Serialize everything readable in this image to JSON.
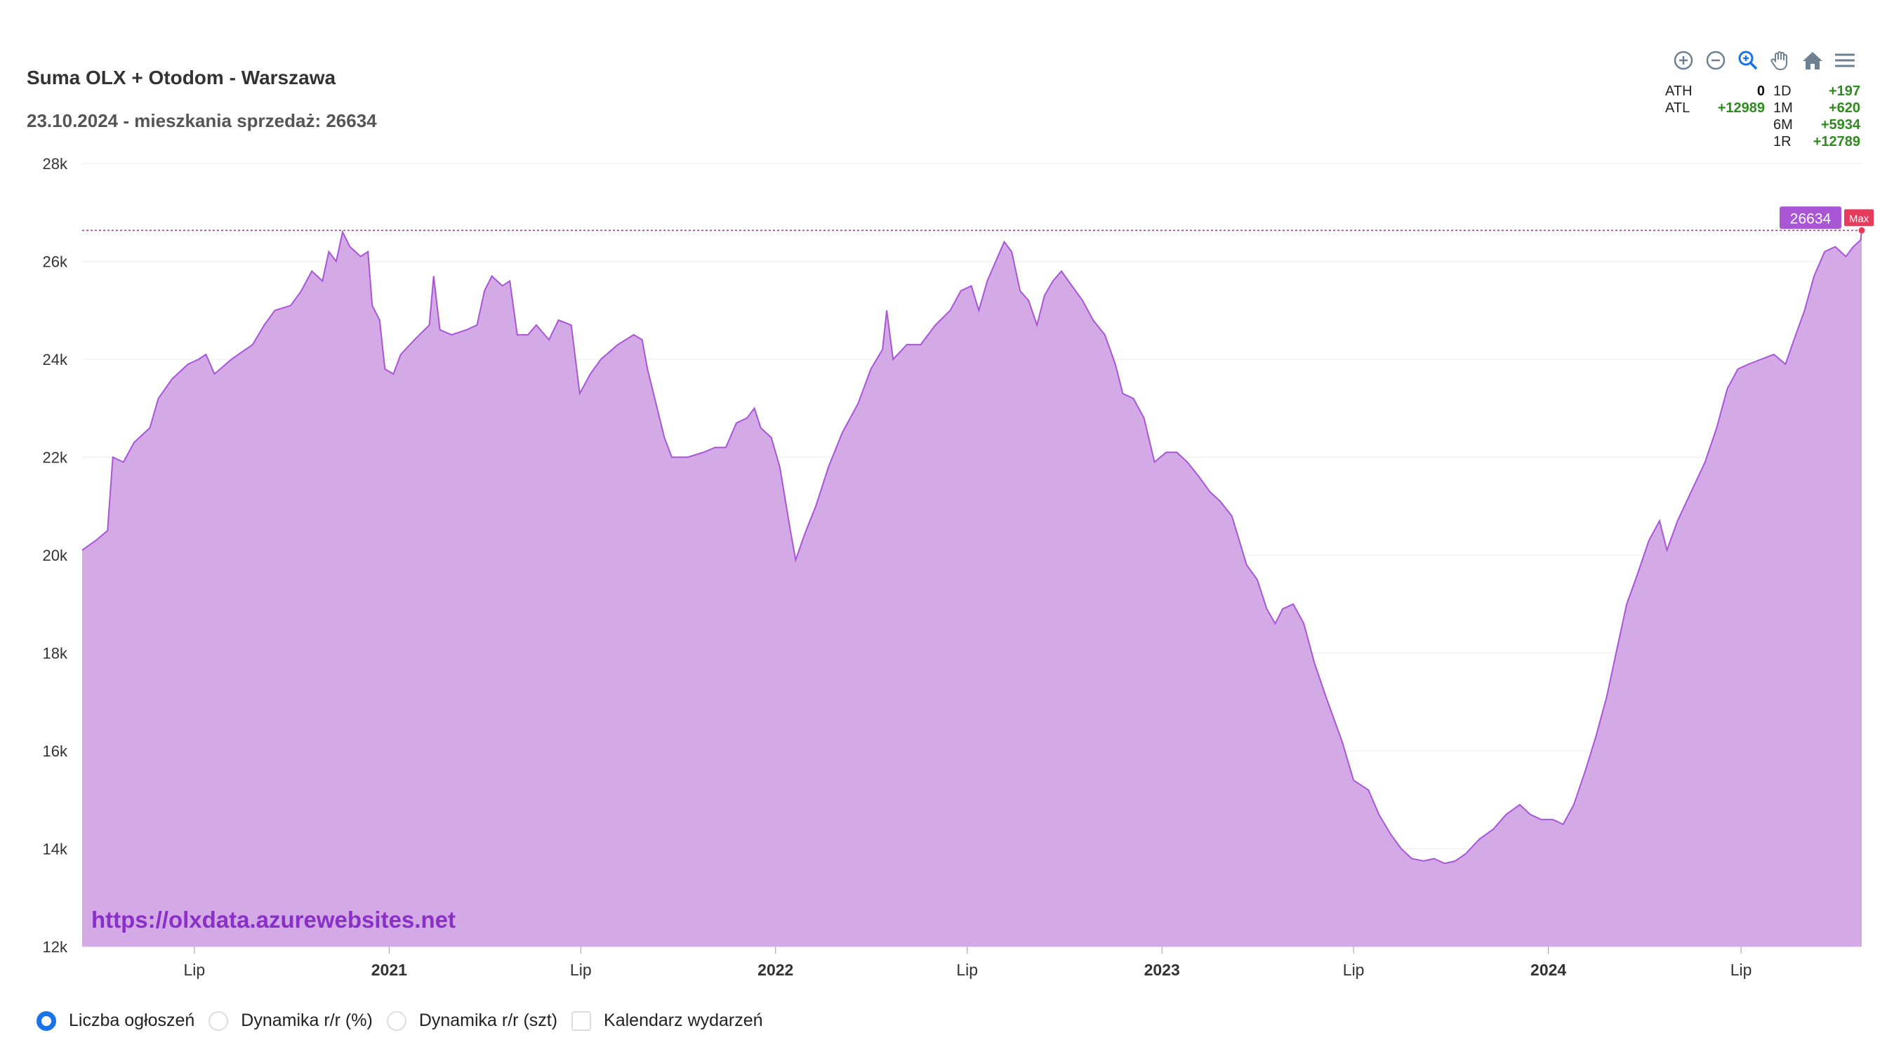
{
  "header": {
    "title": "Suma OLX + Otodom - Warszawa",
    "subtitle": "23.10.2024 - mieszkania sprzedaż: 26634"
  },
  "toolbar": {
    "icons": [
      "zoom-in-icon",
      "zoom-out-icon",
      "zoom-select-icon",
      "pan-hand-icon",
      "home-reset-icon",
      "menu-icon"
    ]
  },
  "stats": {
    "ath_label": "ATH",
    "ath_value": "0",
    "atl_label": "ATL",
    "atl_value": "+12989",
    "d1_label": "1D",
    "d1_value": "+197",
    "m1_label": "1M",
    "m1_value": "+620",
    "m6_label": "6M",
    "m6_value": "+5934",
    "r1_label": "1R",
    "r1_value": "+12789"
  },
  "watermark": "https://olxdata.azurewebsites.net",
  "annotations": {
    "max_line_value": 26634,
    "max_value_label": "26634",
    "max_badge": "Max"
  },
  "colors": {
    "area_fill": "#d3aae6",
    "line": "#a855d6",
    "max_line": "#c0329c",
    "max_label_bg": "#a855d6",
    "max_badge_bg": "#e63b5c",
    "watermark": "#8b2fc9",
    "positive": "#2e8b1e"
  },
  "controls": {
    "radio_count": "Liczba ogłoszeń",
    "radio_yoy_pct": "Dynamika r/r (%)",
    "radio_yoy_abs": "Dynamika r/r (szt)",
    "checkbox_events": "Kalendarz wydarzeń"
  },
  "chart_data": {
    "type": "area",
    "title": "Suma OLX + Otodom - Warszawa",
    "subtitle": "23.10.2024 - mieszkania sprzedaż: 26634",
    "ylim": [
      12000,
      28000
    ],
    "y_ticks": [
      12000,
      14000,
      16000,
      18000,
      20000,
      22000,
      24000,
      26000,
      28000
    ],
    "y_tick_labels": [
      "12k",
      "14k",
      "16k",
      "18k",
      "20k",
      "22k",
      "24k",
      "26k",
      "28k"
    ],
    "x_range": [
      "2020-03-17",
      "2024-10-23"
    ],
    "x_ticks": [
      {
        "date": "2020-07-01",
        "label": "Lip",
        "bold": false
      },
      {
        "date": "2021-01-01",
        "label": "2021",
        "bold": true
      },
      {
        "date": "2021-07-01",
        "label": "Lip",
        "bold": false
      },
      {
        "date": "2022-01-01",
        "label": "2022",
        "bold": true
      },
      {
        "date": "2022-07-01",
        "label": "Lip",
        "bold": false
      },
      {
        "date": "2023-01-01",
        "label": "2023",
        "bold": true
      },
      {
        "date": "2023-07-01",
        "label": "Lip",
        "bold": false
      },
      {
        "date": "2024-01-01",
        "label": "2024",
        "bold": true
      },
      {
        "date": "2024-07-01",
        "label": "Lip",
        "bold": false
      }
    ],
    "grid": true,
    "series": [
      {
        "points": [
          [
            "2020-03-17",
            20100
          ],
          [
            "2020-03-30",
            20300
          ],
          [
            "2020-04-10",
            20500
          ],
          [
            "2020-04-15",
            22000
          ],
          [
            "2020-04-25",
            21900
          ],
          [
            "2020-05-05",
            22300
          ],
          [
            "2020-05-20",
            22600
          ],
          [
            "2020-05-28",
            23200
          ],
          [
            "2020-06-10",
            23600
          ],
          [
            "2020-06-25",
            23900
          ],
          [
            "2020-07-05",
            24000
          ],
          [
            "2020-07-12",
            24100
          ],
          [
            "2020-07-20",
            23700
          ],
          [
            "2020-08-05",
            24000
          ],
          [
            "2020-08-25",
            24300
          ],
          [
            "2020-09-05",
            24700
          ],
          [
            "2020-09-15",
            25000
          ],
          [
            "2020-09-30",
            25100
          ],
          [
            "2020-10-10",
            25400
          ],
          [
            "2020-10-20",
            25800
          ],
          [
            "2020-10-30",
            25600
          ],
          [
            "2020-11-05",
            26200
          ],
          [
            "2020-11-12",
            26000
          ],
          [
            "2020-11-18",
            26600
          ],
          [
            "2020-11-25",
            26300
          ],
          [
            "2020-12-05",
            26100
          ],
          [
            "2020-12-12",
            26200
          ],
          [
            "2020-12-16",
            25100
          ],
          [
            "2020-12-23",
            24800
          ],
          [
            "2020-12-28",
            23800
          ],
          [
            "2021-01-05",
            23700
          ],
          [
            "2021-01-12",
            24100
          ],
          [
            "2021-01-25",
            24400
          ],
          [
            "2021-02-08",
            24700
          ],
          [
            "2021-02-12",
            25700
          ],
          [
            "2021-02-18",
            24600
          ],
          [
            "2021-03-01",
            24500
          ],
          [
            "2021-03-15",
            24600
          ],
          [
            "2021-03-25",
            24700
          ],
          [
            "2021-04-01",
            25400
          ],
          [
            "2021-04-08",
            25700
          ],
          [
            "2021-04-18",
            25500
          ],
          [
            "2021-04-25",
            25600
          ],
          [
            "2021-05-02",
            24500
          ],
          [
            "2021-05-12",
            24500
          ],
          [
            "2021-05-20",
            24700
          ],
          [
            "2021-06-01",
            24400
          ],
          [
            "2021-06-10",
            24800
          ],
          [
            "2021-06-22",
            24700
          ],
          [
            "2021-06-30",
            23300
          ],
          [
            "2021-07-10",
            23700
          ],
          [
            "2021-07-20",
            24000
          ],
          [
            "2021-08-05",
            24300
          ],
          [
            "2021-08-20",
            24500
          ],
          [
            "2021-08-28",
            24400
          ],
          [
            "2021-09-02",
            23800
          ],
          [
            "2021-09-10",
            23100
          ],
          [
            "2021-09-18",
            22400
          ],
          [
            "2021-09-25",
            22000
          ],
          [
            "2021-10-10",
            22000
          ],
          [
            "2021-10-25",
            22100
          ],
          [
            "2021-11-05",
            22200
          ],
          [
            "2021-11-15",
            22200
          ],
          [
            "2021-11-25",
            22700
          ],
          [
            "2021-12-05",
            22800
          ],
          [
            "2021-12-12",
            23000
          ],
          [
            "2021-12-18",
            22600
          ],
          [
            "2021-12-28",
            22400
          ],
          [
            "2022-01-05",
            21800
          ],
          [
            "2022-01-15",
            20500
          ],
          [
            "2022-01-20",
            19900
          ],
          [
            "2022-01-28",
            20400
          ],
          [
            "2022-02-08",
            21000
          ],
          [
            "2022-02-20",
            21800
          ],
          [
            "2022-03-05",
            22500
          ],
          [
            "2022-03-20",
            23100
          ],
          [
            "2022-04-01",
            23800
          ],
          [
            "2022-04-12",
            24200
          ],
          [
            "2022-04-16",
            25000
          ],
          [
            "2022-04-22",
            24000
          ],
          [
            "2022-05-05",
            24300
          ],
          [
            "2022-05-18",
            24300
          ],
          [
            "2022-06-01",
            24700
          ],
          [
            "2022-06-15",
            25000
          ],
          [
            "2022-06-25",
            25400
          ],
          [
            "2022-07-05",
            25500
          ],
          [
            "2022-07-12",
            25000
          ],
          [
            "2022-07-20",
            25600
          ],
          [
            "2022-07-28",
            26000
          ],
          [
            "2022-08-05",
            26400
          ],
          [
            "2022-08-12",
            26200
          ],
          [
            "2022-08-20",
            25400
          ],
          [
            "2022-08-28",
            25200
          ],
          [
            "2022-09-05",
            24700
          ],
          [
            "2022-09-12",
            25300
          ],
          [
            "2022-09-20",
            25600
          ],
          [
            "2022-09-28",
            25800
          ],
          [
            "2022-10-08",
            25500
          ],
          [
            "2022-10-18",
            25200
          ],
          [
            "2022-10-28",
            24800
          ],
          [
            "2022-11-08",
            24500
          ],
          [
            "2022-11-18",
            23900
          ],
          [
            "2022-11-25",
            23300
          ],
          [
            "2022-12-05",
            23200
          ],
          [
            "2022-12-15",
            22800
          ],
          [
            "2022-12-25",
            21900
          ],
          [
            "2023-01-05",
            22100
          ],
          [
            "2023-01-15",
            22100
          ],
          [
            "2023-01-25",
            21900
          ],
          [
            "2023-02-05",
            21600
          ],
          [
            "2023-02-15",
            21300
          ],
          [
            "2023-02-25",
            21100
          ],
          [
            "2023-03-08",
            20800
          ],
          [
            "2023-03-15",
            20300
          ],
          [
            "2023-03-22",
            19800
          ],
          [
            "2023-04-01",
            19500
          ],
          [
            "2023-04-10",
            18900
          ],
          [
            "2023-04-18",
            18600
          ],
          [
            "2023-04-25",
            18900
          ],
          [
            "2023-05-05",
            19000
          ],
          [
            "2023-05-15",
            18600
          ],
          [
            "2023-05-25",
            17800
          ],
          [
            "2023-06-05",
            17100
          ],
          [
            "2023-06-20",
            16200
          ],
          [
            "2023-07-01",
            15400
          ],
          [
            "2023-07-15",
            15200
          ],
          [
            "2023-07-25",
            14700
          ],
          [
            "2023-08-05",
            14300
          ],
          [
            "2023-08-15",
            14000
          ],
          [
            "2023-08-25",
            13800
          ],
          [
            "2023-09-05",
            13750
          ],
          [
            "2023-09-15",
            13800
          ],
          [
            "2023-09-25",
            13700
          ],
          [
            "2023-10-05",
            13750
          ],
          [
            "2023-10-15",
            13900
          ],
          [
            "2023-10-28",
            14200
          ],
          [
            "2023-11-10",
            14400
          ],
          [
            "2023-11-22",
            14700
          ],
          [
            "2023-12-05",
            14900
          ],
          [
            "2023-12-15",
            14700
          ],
          [
            "2023-12-25",
            14600
          ],
          [
            "2024-01-05",
            14600
          ],
          [
            "2024-01-15",
            14500
          ],
          [
            "2024-01-25",
            14900
          ],
          [
            "2024-02-05",
            15600
          ],
          [
            "2024-02-15",
            16300
          ],
          [
            "2024-02-25",
            17100
          ],
          [
            "2024-03-05",
            18000
          ],
          [
            "2024-03-15",
            19000
          ],
          [
            "2024-03-25",
            19600
          ],
          [
            "2024-04-05",
            20300
          ],
          [
            "2024-04-15",
            20700
          ],
          [
            "2024-04-22",
            20100
          ],
          [
            "2024-05-02",
            20700
          ],
          [
            "2024-05-15",
            21300
          ],
          [
            "2024-05-28",
            21900
          ],
          [
            "2024-06-08",
            22600
          ],
          [
            "2024-06-18",
            23400
          ],
          [
            "2024-06-28",
            23800
          ],
          [
            "2024-07-08",
            23900
          ],
          [
            "2024-07-20",
            24000
          ],
          [
            "2024-08-01",
            24100
          ],
          [
            "2024-08-12",
            23900
          ],
          [
            "2024-08-20",
            24400
          ],
          [
            "2024-08-30",
            25000
          ],
          [
            "2024-09-08",
            25700
          ],
          [
            "2024-09-18",
            26200
          ],
          [
            "2024-09-28",
            26300
          ],
          [
            "2024-10-08",
            26100
          ],
          [
            "2024-10-15",
            26300
          ],
          [
            "2024-10-22",
            26437
          ],
          [
            "2024-10-23",
            26634
          ]
        ]
      }
    ]
  }
}
